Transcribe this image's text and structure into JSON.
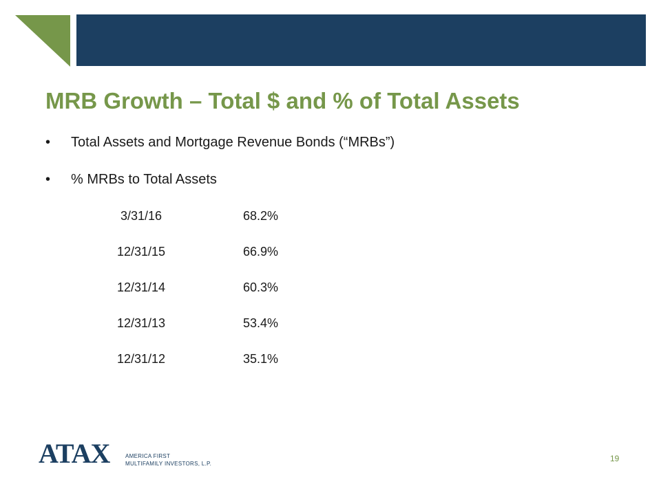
{
  "colors": {
    "accent_green": "#76974a",
    "header_navy": "#1c3f61"
  },
  "title": "MRB Growth – Total $ and % of Total Assets",
  "bullets": [
    {
      "marker": "•",
      "text": "Total Assets and Mortgage Revenue Bonds (“MRBs”)"
    },
    {
      "marker": "•",
      "text": "% MRBs to Total Assets"
    }
  ],
  "mrb_percentages": [
    {
      "date": "3/31/16",
      "percent": "68.2%"
    },
    {
      "date": "12/31/15",
      "percent": "66.9%"
    },
    {
      "date": "12/31/14",
      "percent": "60.3%"
    },
    {
      "date": "12/31/13",
      "percent": "53.4%"
    },
    {
      "date": "12/31/12",
      "percent": "35.1%"
    }
  ],
  "logo": {
    "mark": "ATAX",
    "line1": "AMERICA FIRST",
    "line2": "MULTIFAMILY INVESTORS, L.P."
  },
  "page_number": "19"
}
